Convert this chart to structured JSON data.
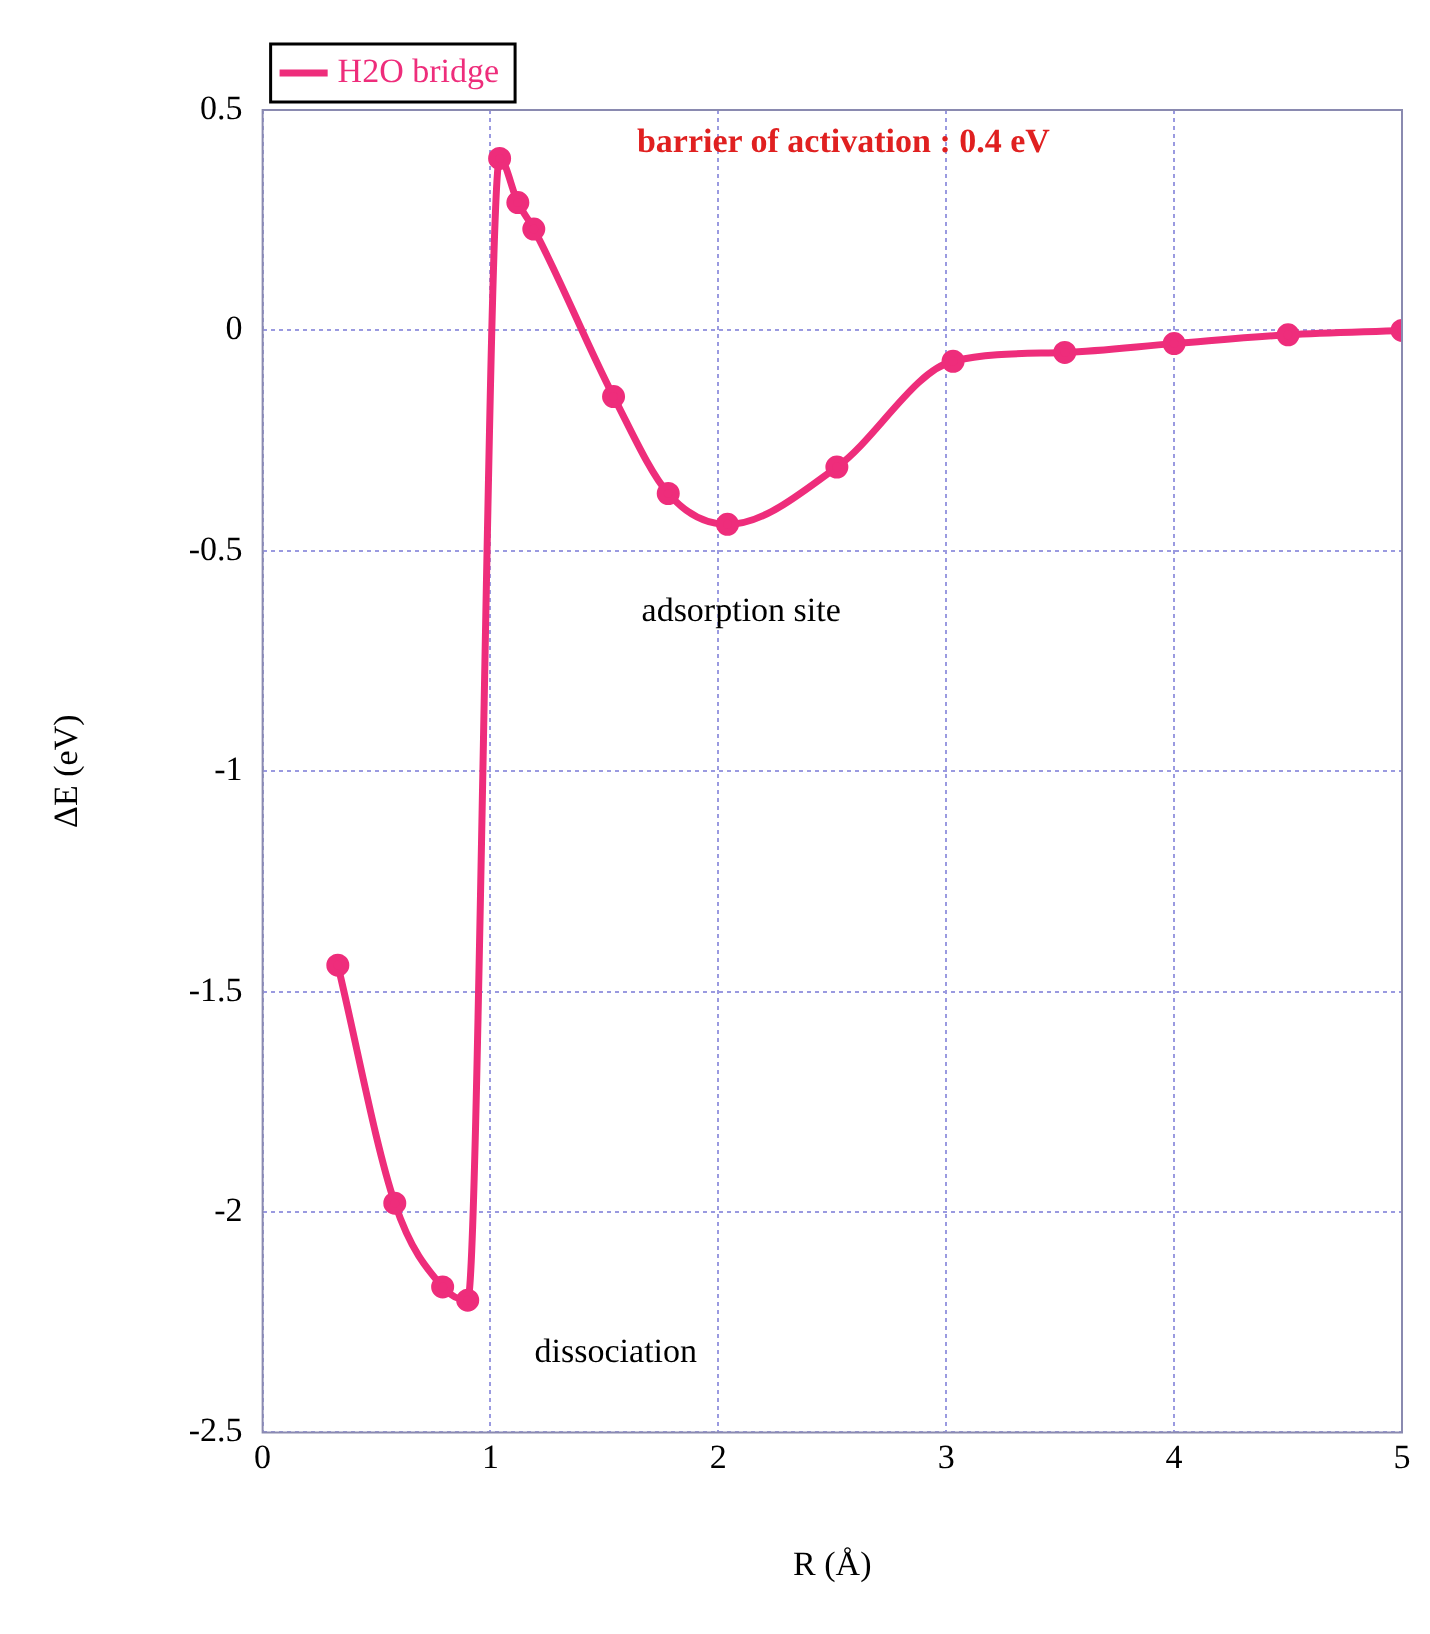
{
  "chart_data": {
    "type": "line",
    "xlabel": "R (Å)",
    "ylabel": "ΔE (eV)",
    "series": [
      {
        "name": "H2O bridge",
        "color": "#ee2d7b",
        "x": [
          0.33,
          0.58,
          0.79,
          0.9,
          1.04,
          1.12,
          1.19,
          1.54,
          1.78,
          2.04,
          2.52,
          3.03,
          3.52,
          4.0,
          4.5,
          5.0
        ],
        "values": [
          -1.44,
          -1.98,
          -2.17,
          -2.2,
          0.39,
          0.29,
          0.23,
          -0.15,
          -0.37,
          -0.44,
          -0.31,
          -0.07,
          -0.05,
          -0.03,
          -0.01,
          0
        ]
      }
    ],
    "xlim": [
      0,
      5
    ],
    "xticks": [
      0,
      1,
      2,
      3,
      4,
      5
    ],
    "ylim": [
      -2.5,
      0.5
    ],
    "yticks": [
      -2.5,
      -2,
      -1.5,
      -1,
      -0.5,
      0,
      0.5
    ],
    "grid": true,
    "legend": "top left",
    "marker": "circle",
    "line_style": "solid",
    "annotations": [
      "barrier of activation : 0.4 eV",
      "adsorption site",
      "dissociation"
    ]
  }
}
